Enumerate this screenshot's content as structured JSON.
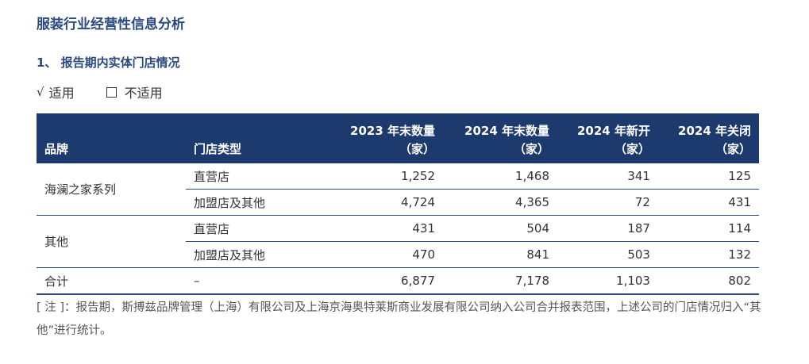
{
  "section_title": "服装行业经营性信息分析",
  "sub_title": "1、 报告期内实体门店情况",
  "applicability": {
    "applicable_mark": "√",
    "applicable_label": "适用",
    "not_applicable_label": "不适用"
  },
  "table": {
    "headers": {
      "brand": "品牌",
      "store_type": "门店类型",
      "col1_line1": "2023 年末数量",
      "col1_line2": "（家）",
      "col2_line1": "2024 年末数量",
      "col2_line2": "（家）",
      "col3_line1": "2024 年新开",
      "col3_line2": "（家）",
      "col4_line1": "2024 年关闭",
      "col4_line2": "（家）"
    },
    "groups": [
      {
        "brand": "海澜之家系列",
        "rows": [
          {
            "type": "直营店",
            "v2023": "1,252",
            "v2024": "1,468",
            "opened": "341",
            "closed": "125"
          },
          {
            "type": "加盟店及其他",
            "v2023": "4,724",
            "v2024": "4,365",
            "opened": "72",
            "closed": "431"
          }
        ]
      },
      {
        "brand": "其他",
        "rows": [
          {
            "type": "直营店",
            "v2023": "431",
            "v2024": "504",
            "opened": "187",
            "closed": "114"
          },
          {
            "type": "加盟店及其他",
            "v2023": "470",
            "v2024": "841",
            "opened": "503",
            "closed": "132"
          }
        ]
      }
    ],
    "total": {
      "brand": "合计",
      "type": "–",
      "v2023": "6,877",
      "v2024": "7,178",
      "opened": "1,103",
      "closed": "802"
    }
  },
  "note": "[ 注 ]：报告期，斯搏兹品牌管理（上海）有限公司及上海京海奥特莱斯商业发展有限公司纳入公司合并报表范围，上述公司的门店情况归入“其他”进行统计。"
}
